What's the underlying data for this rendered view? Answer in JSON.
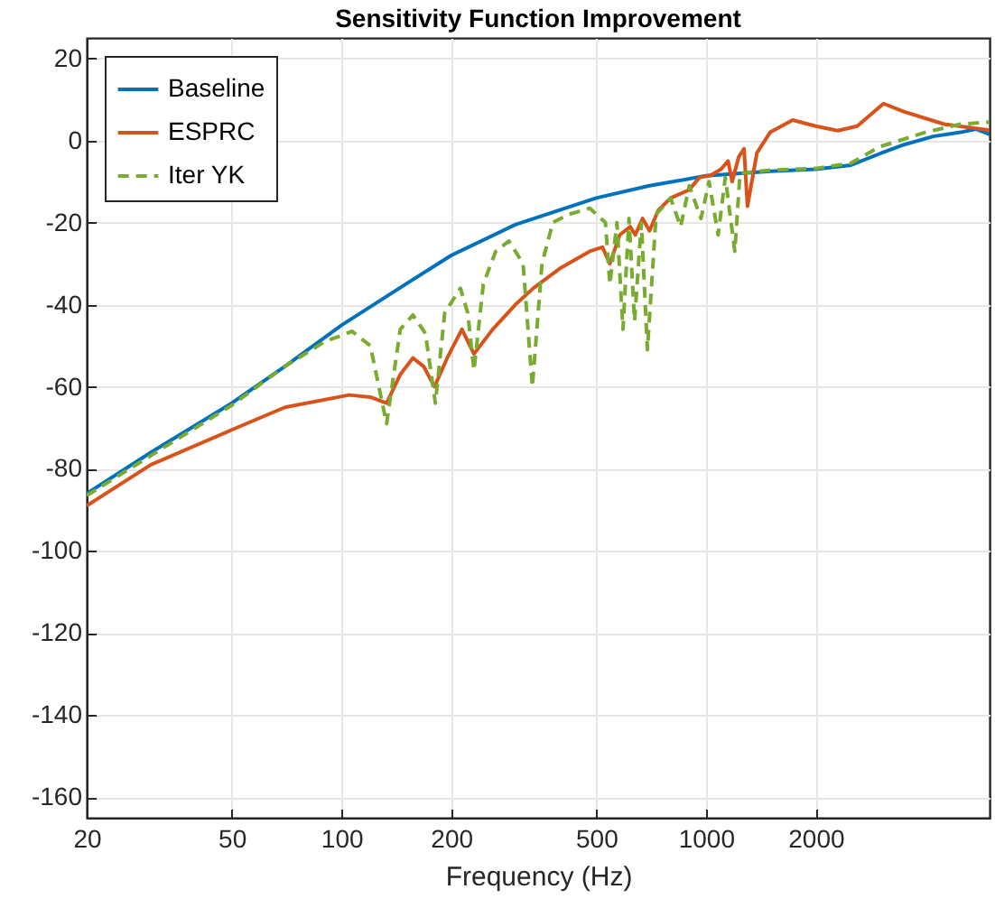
{
  "chart_data": {
    "type": "line",
    "title": "Sensitivity Function Improvement",
    "xlabel": "Frequency (Hz)",
    "log": "x",
    "xlim": [
      20,
      6000
    ],
    "xticks": [
      20,
      50,
      100,
      200,
      500,
      1000,
      2000
    ],
    "ylim": [
      -165,
      25
    ],
    "yticks": [
      -160,
      -140,
      -120,
      -100,
      -80,
      -60,
      -40,
      -20,
      0,
      20
    ],
    "grid": true,
    "legend": "top left",
    "series": [
      {
        "name": "Baseline",
        "color": "#0072bd",
        "line_style": "solid",
        "x": [
          20,
          30,
          50,
          70,
          100,
          150,
          200,
          300,
          500,
          700,
          1000,
          1500,
          2000,
          2500,
          3000,
          3500,
          4200,
          5000,
          5500,
          6000
        ],
        "values": [
          -86,
          -76,
          -64,
          -55,
          -45,
          -35,
          -28,
          -20.5,
          -14,
          -11,
          -8.6,
          -7.5,
          -7,
          -6,
          -3.2,
          -1,
          1,
          2,
          2.8,
          1.5
        ]
      },
      {
        "name": "ESPRC",
        "color": "#d95319",
        "line_style": "solid",
        "x": [
          20,
          30,
          50,
          70,
          105,
          120,
          133,
          145,
          157,
          168,
          180,
          195,
          214,
          231,
          260,
          300,
          336,
          400,
          480,
          520,
          545,
          580,
          620,
          640,
          670,
          700,
          740,
          800,
          900,
          960,
          1030,
          1100,
          1150,
          1180,
          1230,
          1272,
          1300,
          1380,
          1500,
          1730,
          2000,
          2300,
          2600,
          3070,
          3500,
          4500,
          6000
        ],
        "values": [
          -89,
          -79,
          -70.5,
          -65,
          -62,
          -62.5,
          -64,
          -57,
          -53,
          -55,
          -60,
          -53,
          -46,
          -52,
          -46,
          -40,
          -36,
          -31,
          -27,
          -26,
          -30,
          -23,
          -21,
          -23,
          -19,
          -22,
          -17,
          -14,
          -12,
          -9,
          -8.5,
          -7,
          -5,
          -10,
          -4,
          -2,
          -16,
          -3,
          2,
          5,
          3.5,
          2.4,
          3.5,
          9,
          7,
          4,
          2.5
        ]
      },
      {
        "name": "Iter YK",
        "color": "#77ac30",
        "line_style": "dashed",
        "x": [
          20,
          50,
          70,
          90,
          107,
          120,
          133,
          145,
          157,
          170,
          181,
          192,
          212,
          222,
          231,
          245,
          265,
          288,
          315,
          334,
          355,
          380,
          420,
          480,
          530,
          545,
          570,
          592,
          615,
          637,
          665,
          691,
          730,
          800,
          852,
          900,
          969,
          1020,
          1080,
          1130,
          1200,
          1240,
          1500,
          2000,
          2500,
          3000,
          4000,
          5000,
          6000
        ],
        "values": [
          -86.5,
          -64.5,
          -55,
          -49,
          -46.5,
          -50,
          -69,
          -46,
          -42.5,
          -47,
          -64,
          -42,
          -36,
          -42,
          -56,
          -35,
          -27,
          -24.5,
          -30,
          -60,
          -30,
          -20,
          -18,
          -16.5,
          -20,
          -35,
          -20,
          -46,
          -19,
          -44,
          -20,
          -51,
          -18,
          -14,
          -21,
          -11,
          -19,
          -10,
          -23,
          -9,
          -27,
          -8,
          -7.2,
          -6.8,
          -5.5,
          -1.5,
          2,
          4,
          4.5
        ]
      }
    ]
  }
}
